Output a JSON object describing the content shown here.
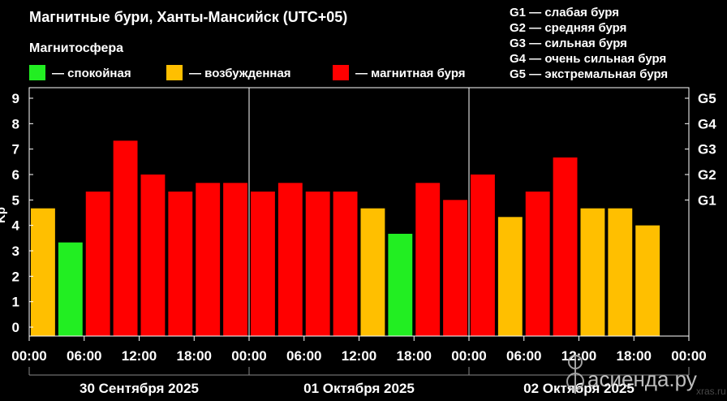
{
  "chart_data": {
    "type": "bar",
    "title": "Магнитные бури, Ханты-Мансийск (UTC+05)",
    "legend_title": "Магнитосфера",
    "legend": [
      {
        "label": "— спокойная",
        "color": "#22ee22"
      },
      {
        "label": "— возбужденная",
        "color": "#ffbf00"
      },
      {
        "label": "— магнитная буря",
        "color": "#ff0000"
      }
    ],
    "g_scale_legend": [
      "G1 — слабая буря",
      "G2 — средняя буря",
      "G3 — сильная буря",
      "G4 — очень сильная буря",
      "G5 — экстремальная буря"
    ],
    "ylabel": "Kp",
    "ylim": [
      0,
      9
    ],
    "y_ticks": [
      "0",
      "1",
      "2",
      "3",
      "4",
      "5",
      "6",
      "7",
      "8",
      "9"
    ],
    "right_ticks": [
      {
        "label": "G1",
        "value": 5
      },
      {
        "label": "G2",
        "value": 6
      },
      {
        "label": "G3",
        "value": 7
      },
      {
        "label": "G4",
        "value": 8
      },
      {
        "label": "G5",
        "value": 9
      }
    ],
    "x_tick_labels": [
      "00:00",
      "06:00",
      "12:00",
      "18:00",
      "00:00",
      "06:00",
      "12:00",
      "18:00",
      "00:00",
      "06:00",
      "12:00",
      "18:00",
      "00:00"
    ],
    "day_labels": [
      "30 Сентября 2025",
      "01 Октября 2025",
      "02 Октября 2025"
    ],
    "bar_hours": [
      0,
      3,
      6,
      9,
      12,
      15,
      18,
      21,
      24,
      27,
      30,
      33,
      36,
      39,
      42,
      45,
      48,
      51,
      54,
      57,
      60,
      63,
      66,
      69
    ],
    "values": [
      4.67,
      3.33,
      5.33,
      7.33,
      6.0,
      5.33,
      5.67,
      5.67,
      5.33,
      5.67,
      5.33,
      5.33,
      4.67,
      3.67,
      5.67,
      5.0,
      6.0,
      4.33,
      5.33,
      6.67,
      4.67,
      4.67,
      4.0
    ],
    "levels": [
      "excited",
      "quiet",
      "storm",
      "storm",
      "storm",
      "storm",
      "storm",
      "storm",
      "storm",
      "storm",
      "storm",
      "storm",
      "excited",
      "quiet",
      "storm",
      "storm",
      "storm",
      "excited",
      "storm",
      "storm",
      "excited",
      "excited",
      "excited"
    ],
    "level_colors": {
      "quiet": "#22ee22",
      "excited": "#ffbf00",
      "storm": "#ff0000"
    },
    "grid": false
  },
  "watermark": {
    "site": "асиенда.ру",
    "faint": "xras.ru"
  }
}
